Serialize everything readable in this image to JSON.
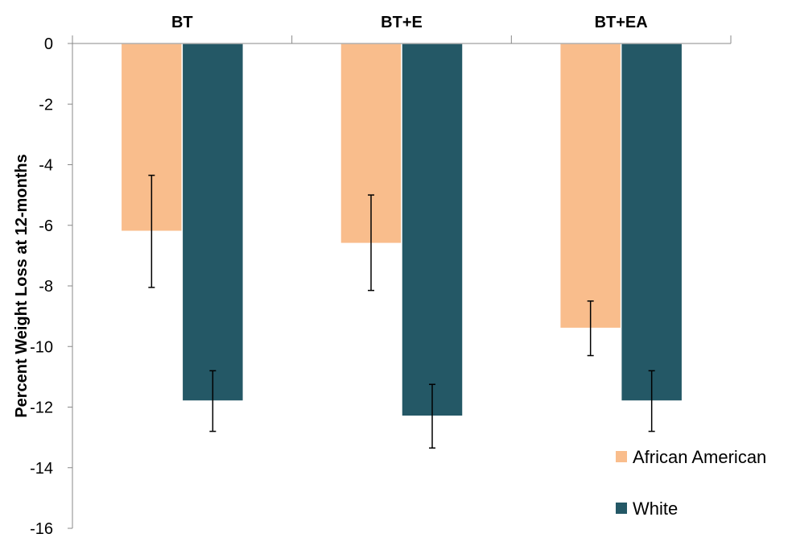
{
  "chart_data": {
    "type": "bar",
    "title": "",
    "xlabel": "",
    "ylabel": "Percent Weight Loss at 12-months",
    "categories": [
      "BT",
      "BT+E",
      "BT+EA"
    ],
    "ylim": [
      -16,
      0
    ],
    "yticks": [
      0,
      -2,
      -4,
      -6,
      -8,
      -10,
      -12,
      -14,
      -16
    ],
    "category_axis_position": "top",
    "grid": false,
    "legend_position": "bottom-right",
    "series": [
      {
        "name": "African American",
        "color": "#f9bd8c",
        "values": [
          -6.2,
          -6.6,
          -9.4
        ],
        "error_low": [
          -8.05,
          -8.15,
          -10.3
        ],
        "error_high": [
          -4.35,
          -5.0,
          -8.5
        ]
      },
      {
        "name": "White",
        "color": "#245866",
        "values": [
          -11.8,
          -12.3,
          -11.8
        ],
        "error_low": [
          -12.8,
          -13.35,
          -12.8
        ],
        "error_high": [
          -10.8,
          -11.25,
          -10.8
        ]
      }
    ]
  }
}
